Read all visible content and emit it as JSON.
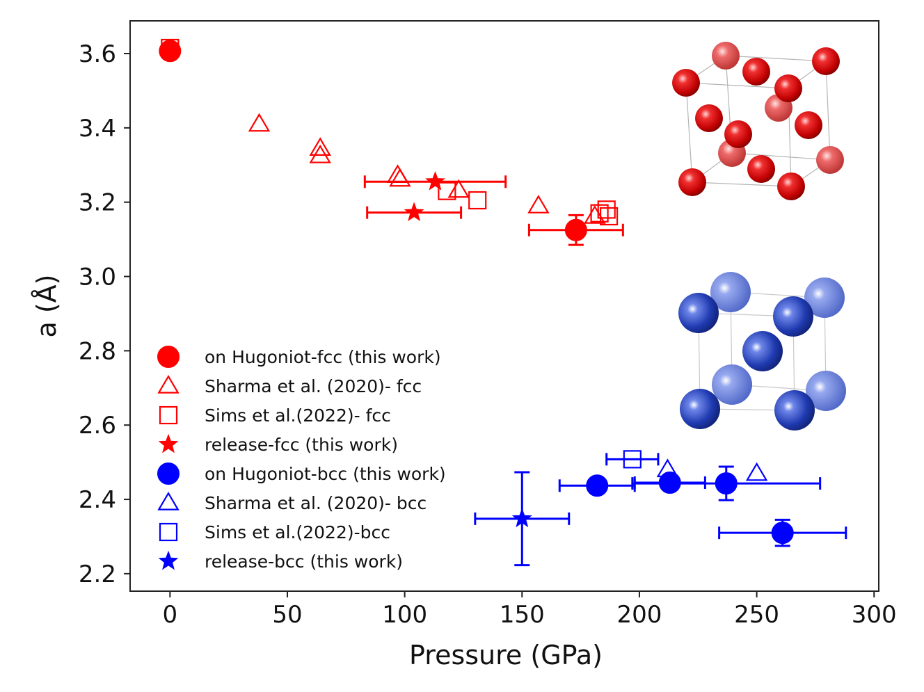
{
  "chart_data": {
    "type": "scatter",
    "xlabel": "Pressure (GPa)",
    "ylabel": "a (Å)",
    "xlim": [
      -17,
      302
    ],
    "ylim": [
      2.153,
      3.688
    ],
    "xticks": [
      0,
      50,
      100,
      150,
      200,
      250,
      300
    ],
    "yticks": [
      2.2,
      2.4,
      2.6,
      2.8,
      3.0,
      3.2,
      3.4,
      3.6
    ],
    "xtick_labels": [
      "0",
      "50",
      "100",
      "150",
      "200",
      "250",
      "300"
    ],
    "ytick_labels": [
      "2.2",
      "2.4",
      "2.6",
      "2.8",
      "3.0",
      "3.2",
      "3.4",
      "3.6"
    ],
    "legend_position": "lower-left",
    "series": [
      {
        "name": "on Hugoniot-fcc (this work)",
        "marker": "circle",
        "color": "#ff0000",
        "filled": true,
        "points": [
          {
            "x": 0,
            "y": 3.607
          },
          {
            "x": 173,
            "y": 3.125,
            "xerr": 20,
            "yerr": 0.04
          }
        ]
      },
      {
        "name": "Sharma et al. (2020)- fcc",
        "marker": "triangle",
        "color": "#ff0000",
        "filled": false,
        "points": [
          {
            "x": 38,
            "y": 3.41
          },
          {
            "x": 64,
            "y": 3.345
          },
          {
            "x": 64,
            "y": 3.325
          },
          {
            "x": 97,
            "y": 3.272
          },
          {
            "x": 98,
            "y": 3.262
          },
          {
            "x": 123,
            "y": 3.232
          },
          {
            "x": 157,
            "y": 3.19
          },
          {
            "x": 181,
            "y": 3.162
          }
        ]
      },
      {
        "name": "Sims et al.(2022)- fcc",
        "marker": "square",
        "color": "#ff0000",
        "filled": false,
        "points": [
          {
            "x": 0,
            "y": 3.615
          },
          {
            "x": 118,
            "y": 3.23
          },
          {
            "x": 131,
            "y": 3.205
          },
          {
            "x": 183,
            "y": 3.17
          },
          {
            "x": 186,
            "y": 3.18
          },
          {
            "x": 187,
            "y": 3.162
          }
        ]
      },
      {
        "name": "release-fcc (this work)",
        "marker": "star",
        "color": "#ff0000",
        "filled": true,
        "points": [
          {
            "x": 113,
            "y": 3.255,
            "xerr": 30
          },
          {
            "x": 104,
            "y": 3.172,
            "xerr": 20
          }
        ]
      },
      {
        "name": "on Hugoniot-bcc (this work)",
        "marker": "circle",
        "color": "#0000ff",
        "filled": true,
        "points": [
          {
            "x": 182,
            "y": 2.437,
            "xerr": 16
          },
          {
            "x": 213,
            "y": 2.445,
            "xerr": 15
          },
          {
            "x": 237,
            "y": 2.443,
            "xerr": 40,
            "yerr": 0.045
          },
          {
            "x": 261,
            "y": 2.31,
            "xerr": 27,
            "yerr": 0.035
          }
        ]
      },
      {
        "name": " Sharma et al. (2020)- bcc",
        "marker": "triangle",
        "color": "#0000ff",
        "filled": false,
        "points": [
          {
            "x": 212,
            "y": 2.48
          },
          {
            "x": 250,
            "y": 2.47
          }
        ]
      },
      {
        "name": " Sims et al.(2022)-bcc",
        "marker": "square",
        "color": "#0000ff",
        "filled": false,
        "points": [
          {
            "x": 197,
            "y": 2.508,
            "xerr": 11
          }
        ]
      },
      {
        "name": "release-bcc (this work)",
        "marker": "star",
        "color": "#0000ff",
        "filled": true,
        "points": [
          {
            "x": 150,
            "y": 2.348,
            "xerr": 20,
            "yerr": 0.125
          }
        ]
      }
    ]
  }
}
